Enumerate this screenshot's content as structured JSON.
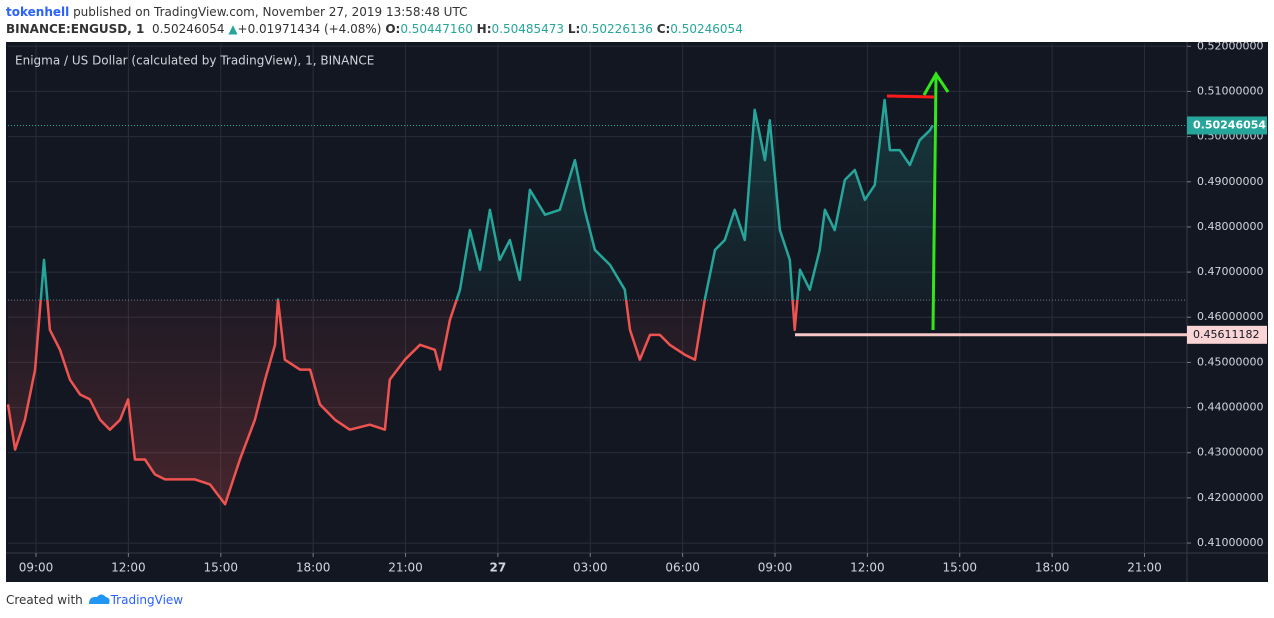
{
  "header": {
    "user": "tokenhell",
    "published": "published on TradingView.com, November 27, 2019 13:58:48 UTC",
    "symbol": "BINANCE:ENGUSD, 1",
    "price": "0.50246054",
    "arrow": "▲",
    "change": "+0.01971434 (+4.08%)",
    "open_label": "O:",
    "open": "0.50447160",
    "high_label": "H:",
    "high": "0.50485473",
    "low_label": "L:",
    "low": "0.50226136",
    "close_label": "C:",
    "close": "0.50246054"
  },
  "footer": {
    "created": "Created with",
    "brand": "TradingView"
  },
  "chart_data": {
    "type": "baseline",
    "title": "Enigma / US Dollar (calculated by TradingView), 1, BINANCE",
    "x": [
      -0.91,
      -0.68,
      -0.36,
      -0.03,
      0.26,
      0.45,
      0.78,
      1.1,
      1.43,
      1.75,
      2.08,
      2.4,
      2.73,
      2.99,
      3.21,
      3.54,
      3.86,
      4.19,
      4.68,
      5.16,
      5.65,
      6.14,
      6.62,
      7.11,
      7.44,
      7.76,
      7.86,
      8.08,
      8.57,
      8.9,
      9.22,
      9.71,
      10.19,
      10.84,
      11.33,
      11.49,
      11.98,
      12.47,
      12.95,
      13.12,
      13.44,
      13.77,
      14.09,
      14.42,
      14.74,
      15.06,
      15.39,
      15.71,
      16.04,
      16.53,
      17.01,
      17.5,
      17.82,
      18.15,
      18.64,
      19.12,
      19.29,
      19.61,
      19.94,
      20.26,
      20.58,
      21.07,
      21.4,
      21.72,
      22.05,
      22.37,
      22.69,
      23.02,
      23.34,
      23.67,
      23.83,
      24.16,
      24.48,
      24.64,
      24.81,
      25.13,
      25.45,
      25.62,
      25.94,
      26.27,
      26.59,
      26.92,
      27.24,
      27.56,
      27.73,
      28.05,
      28.38,
      28.7,
      29.03,
      29.12
    ],
    "values": [
      0.4407,
      0.4307,
      0.4373,
      0.4484,
      0.4727,
      0.4572,
      0.4528,
      0.4462,
      0.4429,
      0.4418,
      0.4373,
      0.4351,
      0.4373,
      0.4418,
      0.4285,
      0.4285,
      0.4252,
      0.4241,
      0.4241,
      0.4241,
      0.423,
      0.4186,
      0.4285,
      0.4373,
      0.4462,
      0.4539,
      0.4639,
      0.4506,
      0.4484,
      0.4484,
      0.4407,
      0.4373,
      0.4351,
      0.4362,
      0.4351,
      0.4462,
      0.4506,
      0.4539,
      0.4528,
      0.4484,
      0.4594,
      0.4661,
      0.4793,
      0.4705,
      0.4838,
      0.4727,
      0.4771,
      0.4683,
      0.4882,
      0.4827,
      0.4838,
      0.4948,
      0.4838,
      0.4749,
      0.4716,
      0.4661,
      0.4572,
      0.4506,
      0.4561,
      0.4561,
      0.4539,
      0.4517,
      0.4506,
      0.4639,
      0.4749,
      0.4771,
      0.4838,
      0.4771,
      0.5059,
      0.4948,
      0.5036,
      0.4793,
      0.4727,
      0.4572,
      0.4705,
      0.4661,
      0.4749,
      0.4838,
      0.4793,
      0.4904,
      0.4926,
      0.486,
      0.4893,
      0.5081,
      0.497,
      0.497,
      0.4937,
      0.4992,
      0.5014,
      0.5025
    ],
    "baseline": 0.4638,
    "up_color": "#26a69a",
    "down_color": "#ef5350",
    "xlim": [
      -0.91,
      37.38
    ],
    "xticks": [
      {
        "value": 0,
        "label": "09:00"
      },
      {
        "value": 3,
        "label": "12:00"
      },
      {
        "value": 6,
        "label": "15:00"
      },
      {
        "value": 9,
        "label": "18:00"
      },
      {
        "value": 12,
        "label": "21:00"
      },
      {
        "value": 15,
        "label": "27"
      },
      {
        "value": 18,
        "label": "03:00"
      },
      {
        "value": 21,
        "label": "06:00"
      },
      {
        "value": 24,
        "label": "09:00"
      },
      {
        "value": 27,
        "label": "12:00"
      },
      {
        "value": 30,
        "label": "15:00"
      },
      {
        "value": 33,
        "label": "18:00"
      },
      {
        "value": 36,
        "label": "21:00"
      }
    ],
    "ylim": [
      0.4078,
      0.5205
    ],
    "yticks": [
      {
        "value": 0.41,
        "label": "0.41000000"
      },
      {
        "value": 0.42,
        "label": "0.42000000"
      },
      {
        "value": 0.43,
        "label": "0.43000000"
      },
      {
        "value": 0.44,
        "label": "0.44000000"
      },
      {
        "value": 0.45,
        "label": "0.45000000"
      },
      {
        "value": 0.46,
        "label": "0.46000000"
      },
      {
        "value": 0.47,
        "label": "0.47000000"
      },
      {
        "value": 0.48,
        "label": "0.48000000"
      },
      {
        "value": 0.49,
        "label": "0.49000000"
      },
      {
        "value": 0.5,
        "label": "0.50000000"
      },
      {
        "value": 0.51,
        "label": "0.51000000"
      },
      {
        "value": 0.52,
        "label": "0.52000000"
      }
    ],
    "grid": true,
    "last_price": {
      "value": 0.50246054,
      "label": "0.50246054"
    },
    "support": {
      "value": 0.45611182,
      "label": "0.45611182"
    }
  }
}
